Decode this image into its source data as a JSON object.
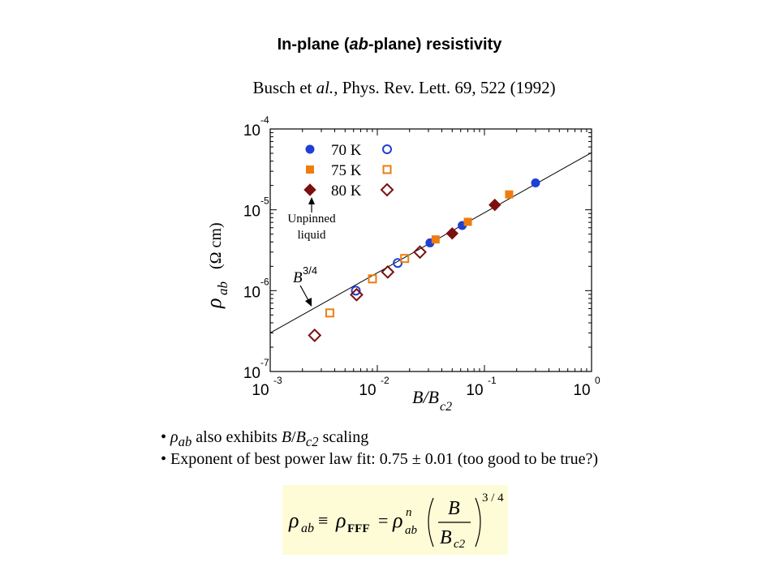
{
  "slide": {
    "title": "In-plane (ab-plane) resistivity",
    "title_parts": {
      "pre": "In-plane (",
      "ab": "ab",
      "post": "-plane) resistivity"
    },
    "citation_parts": {
      "pre": "Busch et ",
      "al": "al.",
      "post": ", Phys. Rev. Lett. 69, 522 (1992)"
    }
  },
  "chart_data": {
    "type": "scatter",
    "xscale": "log",
    "yscale": "log",
    "xlim": [
      0.001,
      1
    ],
    "ylim": [
      1e-07,
      0.0001
    ],
    "xlabel": "B/Bc2",
    "ylabel": "ρab (Ω cm)",
    "x_ticks": [
      {
        "value": 0.001,
        "base": "10",
        "exp": "-3"
      },
      {
        "value": 0.01,
        "base": "10",
        "exp": "-2"
      },
      {
        "value": 0.1,
        "base": "10",
        "exp": "-1"
      },
      {
        "value": 1,
        "base": "10",
        "exp": "0"
      }
    ],
    "y_ticks": [
      {
        "value": 1e-07,
        "base": "10",
        "exp": "-7"
      },
      {
        "value": 1e-06,
        "base": "10",
        "exp": "-6"
      },
      {
        "value": 1e-05,
        "base": "10",
        "exp": "-5"
      },
      {
        "value": 0.0001,
        "base": "10",
        "exp": "-4"
      }
    ],
    "legend": [
      {
        "label": "70 K",
        "marker": "circle",
        "color": "#1f3fd6"
      },
      {
        "label": "75 K",
        "marker": "square",
        "color": "#ee7d10"
      },
      {
        "label": "80 K",
        "marker": "diamond",
        "color": "#7a1010"
      }
    ],
    "series": [
      {
        "name": "70 K",
        "marker": "circle",
        "filled": true,
        "color": "#1f3fd6",
        "points": [
          [
            0.031,
            3.9e-06
          ],
          [
            0.062,
            6.4e-06
          ],
          [
            0.3,
            2.15e-05
          ]
        ]
      },
      {
        "name": "70 K",
        "marker": "circle",
        "filled": false,
        "color": "#1f3fd6",
        "points": [
          [
            0.0063,
            1e-06
          ],
          [
            0.0155,
            2.2e-06
          ]
        ]
      },
      {
        "name": "75 K",
        "marker": "square",
        "filled": true,
        "color": "#ee7d10",
        "points": [
          [
            0.035,
            4.3e-06
          ],
          [
            0.07,
            7.1e-06
          ],
          [
            0.17,
            1.55e-05
          ]
        ]
      },
      {
        "name": "75 K",
        "marker": "square",
        "filled": false,
        "color": "#ee7d10",
        "points": [
          [
            0.0036,
            5.3e-07
          ],
          [
            0.009,
            1.4e-06
          ],
          [
            0.018,
            2.5e-06
          ]
        ]
      },
      {
        "name": "80 K",
        "marker": "diamond",
        "filled": true,
        "color": "#7a1010",
        "points": [
          [
            0.05,
            5.1e-06
          ],
          [
            0.125,
            1.15e-05
          ]
        ]
      },
      {
        "name": "80 K",
        "marker": "diamond",
        "filled": false,
        "color": "#7a1010",
        "points": [
          [
            0.0026,
            2.8e-07
          ],
          [
            0.0064,
            8.9e-07
          ],
          [
            0.0125,
            1.7e-06
          ],
          [
            0.025,
            3e-06
          ]
        ]
      }
    ],
    "fit_line": {
      "exponent": 0.75,
      "x": [
        0.001,
        1
      ],
      "y": [
        3e-07,
        5.1e-05
      ]
    },
    "annotations": [
      {
        "id": "unpinned",
        "lines": [
          "Unpinned",
          "liquid"
        ]
      },
      {
        "id": "b34",
        "base": "B",
        "exp": "3/4"
      }
    ]
  },
  "bullets": [
    {
      "sym": "ρ",
      "sub": "ab",
      "mid": " also exhibits ",
      "b": "B",
      "slash": "/",
      "B2": "B",
      "sub2": "c2",
      "tail": " scaling"
    },
    {
      "text": "Exponent of best power law fit: 0.75 ± 0.01 (too good to be true?)"
    }
  ],
  "formula": {
    "rho": "ρ",
    "ab": "ab",
    "equiv": "≡",
    "fff": "FFF",
    "eq": "=",
    "n": "n",
    "num": "B",
    "den": "B",
    "c2": "c2",
    "exp": "3 / 4"
  },
  "colors": {
    "formula_bg": "#fdfcd6",
    "fit_line": "#000000"
  }
}
